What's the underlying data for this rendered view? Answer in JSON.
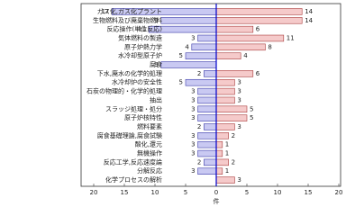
{
  "chart_data": {
    "type": "butterfly",
    "categories": [
      "ガス化,ガス化プラント",
      "生物燃料及び廃棄物燃料",
      "反応操作(単位反応)",
      "気体燃料の製造",
      "原子炉熱力学",
      "水冷却型原子炉",
      "腐食",
      "下水,廃水の化学的処理",
      "水冷却炉の安全性",
      "石炭の物理的・化学的処理",
      "抽出",
      "スラッジ処理・処分",
      "原子炉核特性",
      "燃料要素",
      "腐食基礎理論,腐食試験",
      "酸化,還元",
      "無機操作",
      "反応工学,反応速度論",
      "分解反応",
      "化学プロセスの解析"
    ],
    "series": [
      {
        "side": "left",
        "color": "#c9c9f2",
        "edge": "#3a3aa8",
        "values": [
          17,
          9,
          11,
          3,
          4,
          5,
          9,
          2,
          5,
          3,
          3,
          3,
          3,
          2,
          3,
          3,
          3,
          2,
          3,
          null
        ]
      },
      {
        "side": "right",
        "color": "#f5caca",
        "edge": "#a83a3a",
        "values": [
          14,
          14,
          6,
          11,
          8,
          4,
          null,
          6,
          3,
          3,
          3,
          5,
          5,
          3,
          2,
          1,
          1,
          2,
          1,
          3
        ]
      }
    ],
    "xlim": [
      -20,
      20
    ],
    "xticks": [
      {
        "value": -20,
        "label": "20"
      },
      {
        "value": -15,
        "label": "15"
      },
      {
        "value": -10,
        "label": "10"
      },
      {
        "value": -5,
        "label": "5"
      },
      0,
      5,
      10,
      15,
      20
    ],
    "xlabel": "件"
  }
}
